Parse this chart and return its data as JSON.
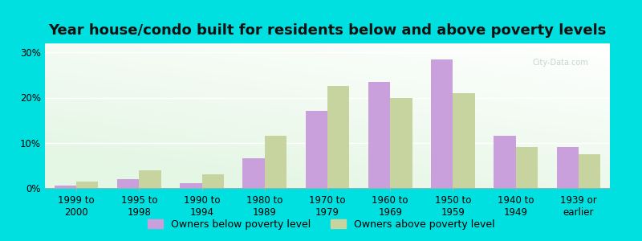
{
  "title": "Year house/condo built for residents below and above poverty levels",
  "categories": [
    "1999 to\n2000",
    "1995 to\n1998",
    "1990 to\n1994",
    "1980 to\n1989",
    "1970 to\n1979",
    "1960 to\n1969",
    "1950 to\n1959",
    "1940 to\n1949",
    "1939 or\nearlier"
  ],
  "below_poverty": [
    0.5,
    2.0,
    1.0,
    6.5,
    17.0,
    23.5,
    28.5,
    11.5,
    9.0
  ],
  "above_poverty": [
    1.5,
    4.0,
    3.0,
    11.5,
    22.5,
    20.0,
    21.0,
    9.0,
    7.5
  ],
  "below_color": "#c9a0dc",
  "above_color": "#c8d4a0",
  "outer_background": "#00e0e0",
  "ylim": [
    0,
    32
  ],
  "yticks": [
    0,
    10,
    20,
    30
  ],
  "ytick_labels": [
    "0%",
    "10%",
    "20%",
    "30%"
  ],
  "legend_below": "Owners below poverty level",
  "legend_above": "Owners above poverty level",
  "bar_width": 0.35,
  "title_fontsize": 13,
  "tick_fontsize": 8.5,
  "legend_fontsize": 9
}
